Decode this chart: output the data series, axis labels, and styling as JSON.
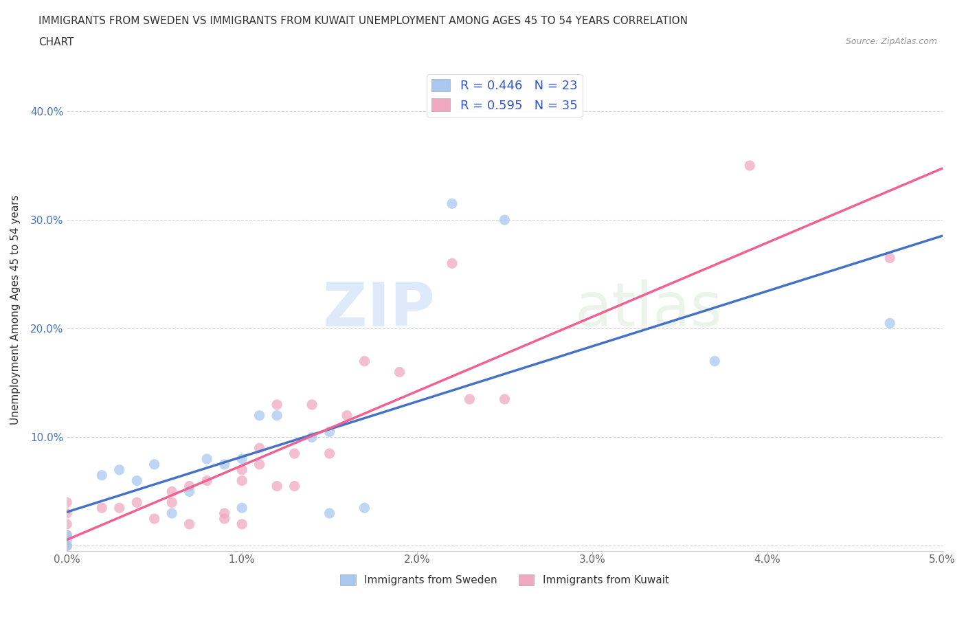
{
  "title_line1": "IMMIGRANTS FROM SWEDEN VS IMMIGRANTS FROM KUWAIT UNEMPLOYMENT AMONG AGES 45 TO 54 YEARS CORRELATION",
  "title_line2": "CHART",
  "source_text": "Source: ZipAtlas.com",
  "ylabel": "Unemployment Among Ages 45 to 54 years",
  "xlim": [
    0.0,
    0.05
  ],
  "ylim": [
    -0.005,
    0.44
  ],
  "xticks": [
    0.0,
    0.01,
    0.02,
    0.03,
    0.04,
    0.05
  ],
  "xticklabels": [
    "0.0%",
    "1.0%",
    "2.0%",
    "3.0%",
    "4.0%",
    "5.0%"
  ],
  "yticks": [
    0.0,
    0.1,
    0.2,
    0.3,
    0.4
  ],
  "yticklabels": [
    "",
    "10.0%",
    "20.0%",
    "30.0%",
    "40.0%"
  ],
  "sweden_R": 0.446,
  "sweden_N": 23,
  "kuwait_R": 0.595,
  "kuwait_N": 35,
  "sweden_color": "#a8c8f0",
  "kuwait_color": "#f0a8c0",
  "sweden_line_color": "#4472c4",
  "kuwait_line_color": "#f06090",
  "background_color": "#ffffff",
  "watermark_zip": "ZIP",
  "watermark_atlas": "atlas",
  "sweden_x": [
    0.0,
    0.0,
    0.0,
    0.002,
    0.003,
    0.004,
    0.005,
    0.006,
    0.007,
    0.008,
    0.009,
    0.01,
    0.01,
    0.011,
    0.012,
    0.014,
    0.015,
    0.015,
    0.017,
    0.022,
    0.025,
    0.037,
    0.047
  ],
  "sweden_y": [
    0.0,
    0.01,
    0.005,
    0.065,
    0.07,
    0.06,
    0.075,
    0.03,
    0.05,
    0.08,
    0.075,
    0.08,
    0.035,
    0.12,
    0.12,
    0.1,
    0.105,
    0.03,
    0.035,
    0.315,
    0.3,
    0.17,
    0.205
  ],
  "kuwait_x": [
    0.0,
    0.0,
    0.0,
    0.0,
    0.0,
    0.002,
    0.003,
    0.004,
    0.005,
    0.006,
    0.006,
    0.007,
    0.007,
    0.008,
    0.009,
    0.009,
    0.01,
    0.01,
    0.01,
    0.011,
    0.011,
    0.012,
    0.012,
    0.013,
    0.013,
    0.014,
    0.015,
    0.016,
    0.017,
    0.019,
    0.022,
    0.023,
    0.025,
    0.039,
    0.047
  ],
  "kuwait_y": [
    0.0,
    0.01,
    0.02,
    0.03,
    0.04,
    0.035,
    0.035,
    0.04,
    0.025,
    0.05,
    0.04,
    0.055,
    0.02,
    0.06,
    0.025,
    0.03,
    0.07,
    0.06,
    0.02,
    0.075,
    0.09,
    0.13,
    0.055,
    0.055,
    0.085,
    0.13,
    0.085,
    0.12,
    0.17,
    0.16,
    0.26,
    0.135,
    0.135,
    0.35,
    0.265
  ]
}
